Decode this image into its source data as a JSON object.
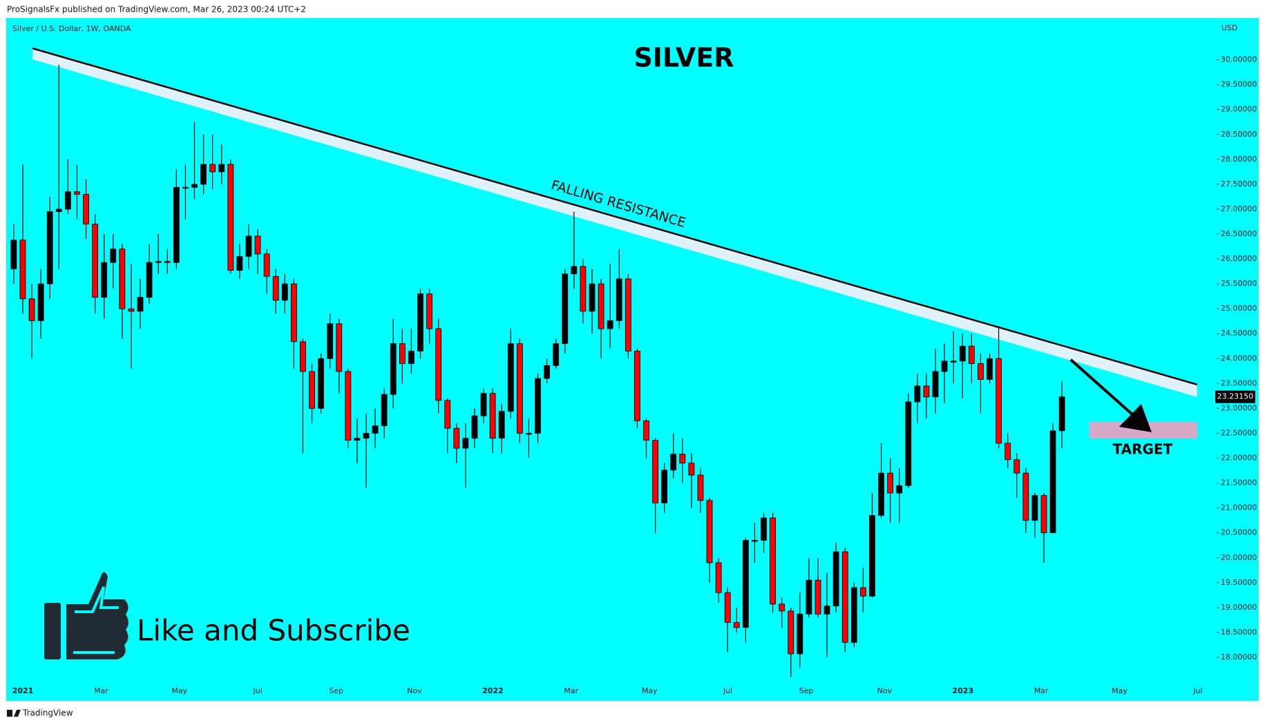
{
  "chart_data": {
    "type": "candlestick",
    "header": "ProSignalsFx published on TradingView.com, Mar 26, 2023 00:24 UTC+2",
    "symbol": "Silver / U.S. Dollar, 1W, OANDA",
    "title": "SILVER",
    "currency": "USD",
    "last_price_label": "23.23150",
    "annotations": {
      "resistance": "FALLING RESISTANCE",
      "target": "TARGET",
      "cta": "Like and Subscribe",
      "footer": "TradingView"
    },
    "xtick_labels": [
      "2021",
      "Mar",
      "May",
      "Jul",
      "Sep",
      "Nov",
      "2022",
      "Mar",
      "May",
      "Jul",
      "Sep",
      "Nov",
      "2023",
      "Mar",
      "May",
      "Jul"
    ],
    "colors": {
      "up": "#000000",
      "down": "#ff0000",
      "background": "#00ffff"
    },
    "ylim": [
      17.5,
      30.6
    ],
    "yticks": [
      {
        "value": 18,
        "label": "18.00000"
      },
      {
        "value": 18.5,
        "label": "18.50000"
      },
      {
        "value": 19,
        "label": "19.00000"
      },
      {
        "value": 19.5,
        "label": "19.50000"
      },
      {
        "value": 20,
        "label": "20.00000"
      },
      {
        "value": 20.5,
        "label": "20.50000"
      },
      {
        "value": 21,
        "label": "21.00000"
      },
      {
        "value": 21.5,
        "label": "21.50000"
      },
      {
        "value": 22,
        "label": "22.00000"
      },
      {
        "value": 22.5,
        "label": "22.50000"
      },
      {
        "value": 23,
        "label": "23.00000"
      },
      {
        "value": 23.5,
        "label": "23.50000"
      },
      {
        "value": 24,
        "label": "24.00000"
      },
      {
        "value": 24.5,
        "label": "24.50000"
      },
      {
        "value": 25,
        "label": "25.00000"
      },
      {
        "value": 25.5,
        "label": "25.50000"
      },
      {
        "value": 26,
        "label": "26.00000"
      },
      {
        "value": 26.5,
        "label": "26.50000"
      },
      {
        "value": 27,
        "label": "27.00000"
      },
      {
        "value": 27.5,
        "label": "27.50000"
      },
      {
        "value": 28,
        "label": "28.00000"
      },
      {
        "value": 28.5,
        "label": "28.50000"
      },
      {
        "value": 29,
        "label": "29.00000"
      },
      {
        "value": 29.5,
        "label": "29.50000"
      },
      {
        "value": 30,
        "label": "30.00000"
      }
    ],
    "open": [
      25.8,
      26.38,
      25.2,
      24.76,
      25.5,
      26.95,
      27.0,
      27.35,
      27.3,
      26.7,
      25.23,
      25.93,
      26.2,
      25.0,
      24.95,
      25.23,
      25.93,
      25.95,
      25.93,
      27.44,
      27.44,
      27.5,
      27.9,
      27.75,
      27.9,
      25.77,
      26.05,
      26.46,
      26.1,
      25.65,
      25.17,
      25.5,
      24.34,
      23.74,
      23.0,
      24.0,
      24.7,
      23.74,
      22.36,
      22.4,
      22.5,
      22.65,
      23.28,
      24.3,
      23.9,
      24.15,
      25.3,
      24.6,
      23.16,
      22.6,
      22.2,
      22.4,
      22.85,
      23.3,
      22.4,
      22.94,
      24.3,
      22.5,
      22.5,
      23.6,
      23.86,
      24.3,
      25.7,
      25.85,
      24.95,
      25.5,
      24.6,
      24.76,
      25.6,
      24.15,
      22.75,
      22.36,
      21.1,
      21.76,
      22.08,
      21.9,
      21.66,
      21.15,
      19.9,
      19.3,
      18.7,
      18.6,
      20.35,
      20.35,
      20.8,
      19.07,
      18.93,
      18.07,
      18.87,
      19.55,
      18.87,
      19.03,
      20.12,
      18.3,
      19.4,
      19.23,
      20.85,
      21.7,
      21.3,
      21.45,
      23.13,
      23.45,
      23.23,
      23.74,
      23.95,
      23.95,
      24.25,
      23.9,
      23.58,
      24.0,
      22.3,
      21.97,
      21.7,
      20.75,
      21.25,
      20.5,
      22.55
    ],
    "high": [
      26.7,
      27.9,
      25.5,
      25.8,
      27.25,
      29.9,
      28.0,
      27.9,
      27.6,
      26.9,
      26.5,
      26.5,
      26.3,
      25.9,
      25.6,
      26.3,
      26.5,
      26.2,
      27.8,
      27.9,
      28.75,
      28.5,
      28.5,
      28.3,
      28.0,
      26.3,
      26.7,
      26.6,
      26.2,
      25.8,
      25.7,
      25.6,
      24.4,
      23.9,
      24.1,
      24.9,
      24.8,
      23.8,
      22.8,
      22.9,
      23.0,
      23.4,
      24.8,
      24.6,
      24.6,
      25.4,
      25.4,
      24.8,
      23.2,
      22.7,
      22.7,
      23.0,
      23.4,
      23.4,
      23.1,
      24.6,
      24.4,
      22.8,
      23.7,
      24.0,
      24.4,
      25.8,
      26.95,
      26.0,
      25.8,
      25.6,
      25.9,
      26.2,
      25.7,
      24.2,
      22.8,
      22.4,
      21.9,
      22.5,
      22.4,
      22.1,
      21.8,
      21.2,
      20.0,
      19.4,
      19.0,
      20.4,
      20.7,
      20.9,
      20.9,
      19.2,
      19.0,
      19.3,
      20.0,
      20.0,
      19.7,
      20.3,
      20.2,
      19.5,
      19.8,
      21.3,
      22.3,
      22.0,
      21.8,
      23.3,
      23.7,
      23.7,
      24.2,
      24.3,
      24.55,
      24.5,
      24.5,
      24.1,
      24.1,
      24.65,
      22.5,
      22.1,
      21.8,
      21.3,
      21.3,
      22.7,
      23.55
    ],
    "low": [
      25.5,
      24.9,
      24.0,
      24.4,
      25.2,
      25.8,
      26.9,
      26.8,
      26.4,
      24.9,
      24.8,
      25.4,
      24.4,
      23.8,
      24.6,
      25.1,
      25.7,
      25.7,
      25.8,
      26.8,
      27.2,
      27.3,
      27.4,
      27.5,
      25.7,
      25.6,
      25.8,
      25.7,
      25.3,
      24.9,
      24.9,
      23.8,
      22.1,
      22.7,
      22.9,
      23.8,
      23.3,
      22.2,
      21.9,
      21.4,
      22.2,
      22.4,
      23.0,
      23.5,
      23.7,
      24.0,
      24.3,
      22.9,
      22.1,
      21.9,
      21.4,
      22.2,
      22.7,
      22.1,
      22.1,
      22.8,
      22.3,
      22.0,
      22.3,
      23.5,
      23.8,
      24.1,
      25.4,
      24.7,
      24.5,
      24.0,
      24.2,
      24.6,
      24.0,
      22.6,
      22.0,
      20.5,
      20.9,
      21.6,
      21.5,
      21.0,
      20.9,
      19.5,
      19.1,
      18.1,
      18.5,
      18.3,
      19.9,
      20.1,
      18.9,
      18.6,
      17.6,
      17.8,
      18.8,
      18.8,
      18.0,
      18.9,
      18.1,
      18.2,
      18.9,
      19.2,
      20.8,
      20.7,
      20.7,
      21.4,
      22.7,
      22.8,
      22.9,
      23.1,
      23.5,
      23.2,
      23.5,
      22.9,
      23.5,
      22.2,
      21.8,
      21.2,
      20.5,
      20.4,
      19.9,
      20.5,
      22.2
    ],
    "close": [
      26.38,
      25.2,
      24.76,
      25.5,
      26.95,
      27.0,
      27.35,
      27.3,
      26.7,
      25.23,
      25.93,
      26.2,
      25.0,
      24.95,
      25.23,
      25.93,
      25.95,
      25.93,
      27.44,
      27.44,
      27.5,
      27.9,
      27.75,
      27.9,
      25.77,
      26.05,
      26.46,
      26.1,
      25.65,
      25.17,
      25.5,
      24.34,
      23.74,
      23.0,
      24.0,
      24.7,
      23.74,
      22.36,
      22.4,
      22.5,
      22.65,
      23.28,
      24.3,
      23.9,
      24.15,
      25.3,
      24.6,
      23.16,
      22.6,
      22.2,
      22.4,
      22.85,
      23.3,
      22.4,
      22.94,
      24.3,
      22.5,
      22.5,
      23.6,
      23.86,
      24.3,
      25.7,
      25.85,
      24.95,
      25.5,
      24.6,
      24.76,
      25.6,
      24.15,
      22.75,
      22.36,
      21.1,
      21.76,
      22.08,
      21.9,
      21.66,
      21.15,
      19.9,
      19.3,
      18.7,
      18.6,
      20.35,
      20.35,
      20.8,
      19.07,
      18.93,
      18.07,
      18.87,
      19.55,
      18.87,
      19.03,
      20.12,
      18.3,
      19.4,
      19.23,
      20.85,
      21.7,
      21.3,
      21.45,
      23.13,
      23.45,
      23.23,
      23.74,
      23.95,
      23.95,
      24.25,
      23.9,
      23.58,
      24.0,
      22.3,
      21.97,
      21.7,
      20.75,
      21.25,
      20.5,
      22.55,
      23.2315
    ]
  }
}
